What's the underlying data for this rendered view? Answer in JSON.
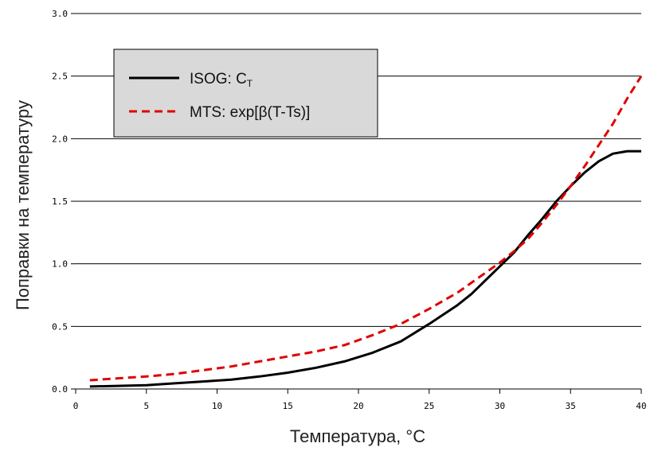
{
  "chart_data": {
    "type": "line",
    "xlabel": "Температура, °C",
    "ylabel": "Поправки на температуру",
    "xlim": [
      0,
      40
    ],
    "ylim": [
      0,
      3
    ],
    "x_ticks": [
      "0",
      "5",
      "10",
      "15",
      "20",
      "25",
      "30",
      "35",
      "40"
    ],
    "y_ticks": [
      "0.0",
      "0.5",
      "1.0",
      "1.5",
      "2.0",
      "2.5",
      "3.0"
    ],
    "grid": "horizontal",
    "legend_position": "top-left",
    "series": [
      {
        "name": "ISOG: C",
        "name_subscript": "T",
        "color": "#000000",
        "style": "solid",
        "points": [
          [
            1,
            0.02
          ],
          [
            3,
            0.025
          ],
          [
            5,
            0.03
          ],
          [
            7,
            0.045
          ],
          [
            9,
            0.06
          ],
          [
            11,
            0.075
          ],
          [
            13,
            0.1
          ],
          [
            15,
            0.13
          ],
          [
            17,
            0.17
          ],
          [
            19,
            0.22
          ],
          [
            21,
            0.29
          ],
          [
            23,
            0.38
          ],
          [
            25,
            0.52
          ],
          [
            27,
            0.67
          ],
          [
            28,
            0.76
          ],
          [
            29,
            0.87
          ],
          [
            30,
            0.98
          ],
          [
            31,
            1.09
          ],
          [
            32,
            1.23
          ],
          [
            33,
            1.36
          ],
          [
            34,
            1.5
          ],
          [
            35,
            1.62
          ],
          [
            36,
            1.73
          ],
          [
            37,
            1.82
          ],
          [
            38,
            1.88
          ],
          [
            39,
            1.9
          ],
          [
            40,
            1.9
          ]
        ]
      },
      {
        "name": "MTS: exp[β(T-Ts)]",
        "color": "#e00000",
        "style": "dashed",
        "points": [
          [
            1,
            0.07
          ],
          [
            3,
            0.085
          ],
          [
            5,
            0.1
          ],
          [
            7,
            0.12
          ],
          [
            9,
            0.15
          ],
          [
            11,
            0.18
          ],
          [
            13,
            0.22
          ],
          [
            15,
            0.26
          ],
          [
            17,
            0.3
          ],
          [
            19,
            0.35
          ],
          [
            21,
            0.43
          ],
          [
            23,
            0.52
          ],
          [
            25,
            0.64
          ],
          [
            27,
            0.77
          ],
          [
            29,
            0.93
          ],
          [
            30,
            1.01
          ],
          [
            31,
            1.1
          ],
          [
            32,
            1.2
          ],
          [
            33,
            1.33
          ],
          [
            34,
            1.47
          ],
          [
            35,
            1.62
          ],
          [
            36,
            1.78
          ],
          [
            37,
            1.95
          ],
          [
            38,
            2.12
          ],
          [
            39,
            2.32
          ],
          [
            40,
            2.5
          ]
        ]
      }
    ]
  }
}
